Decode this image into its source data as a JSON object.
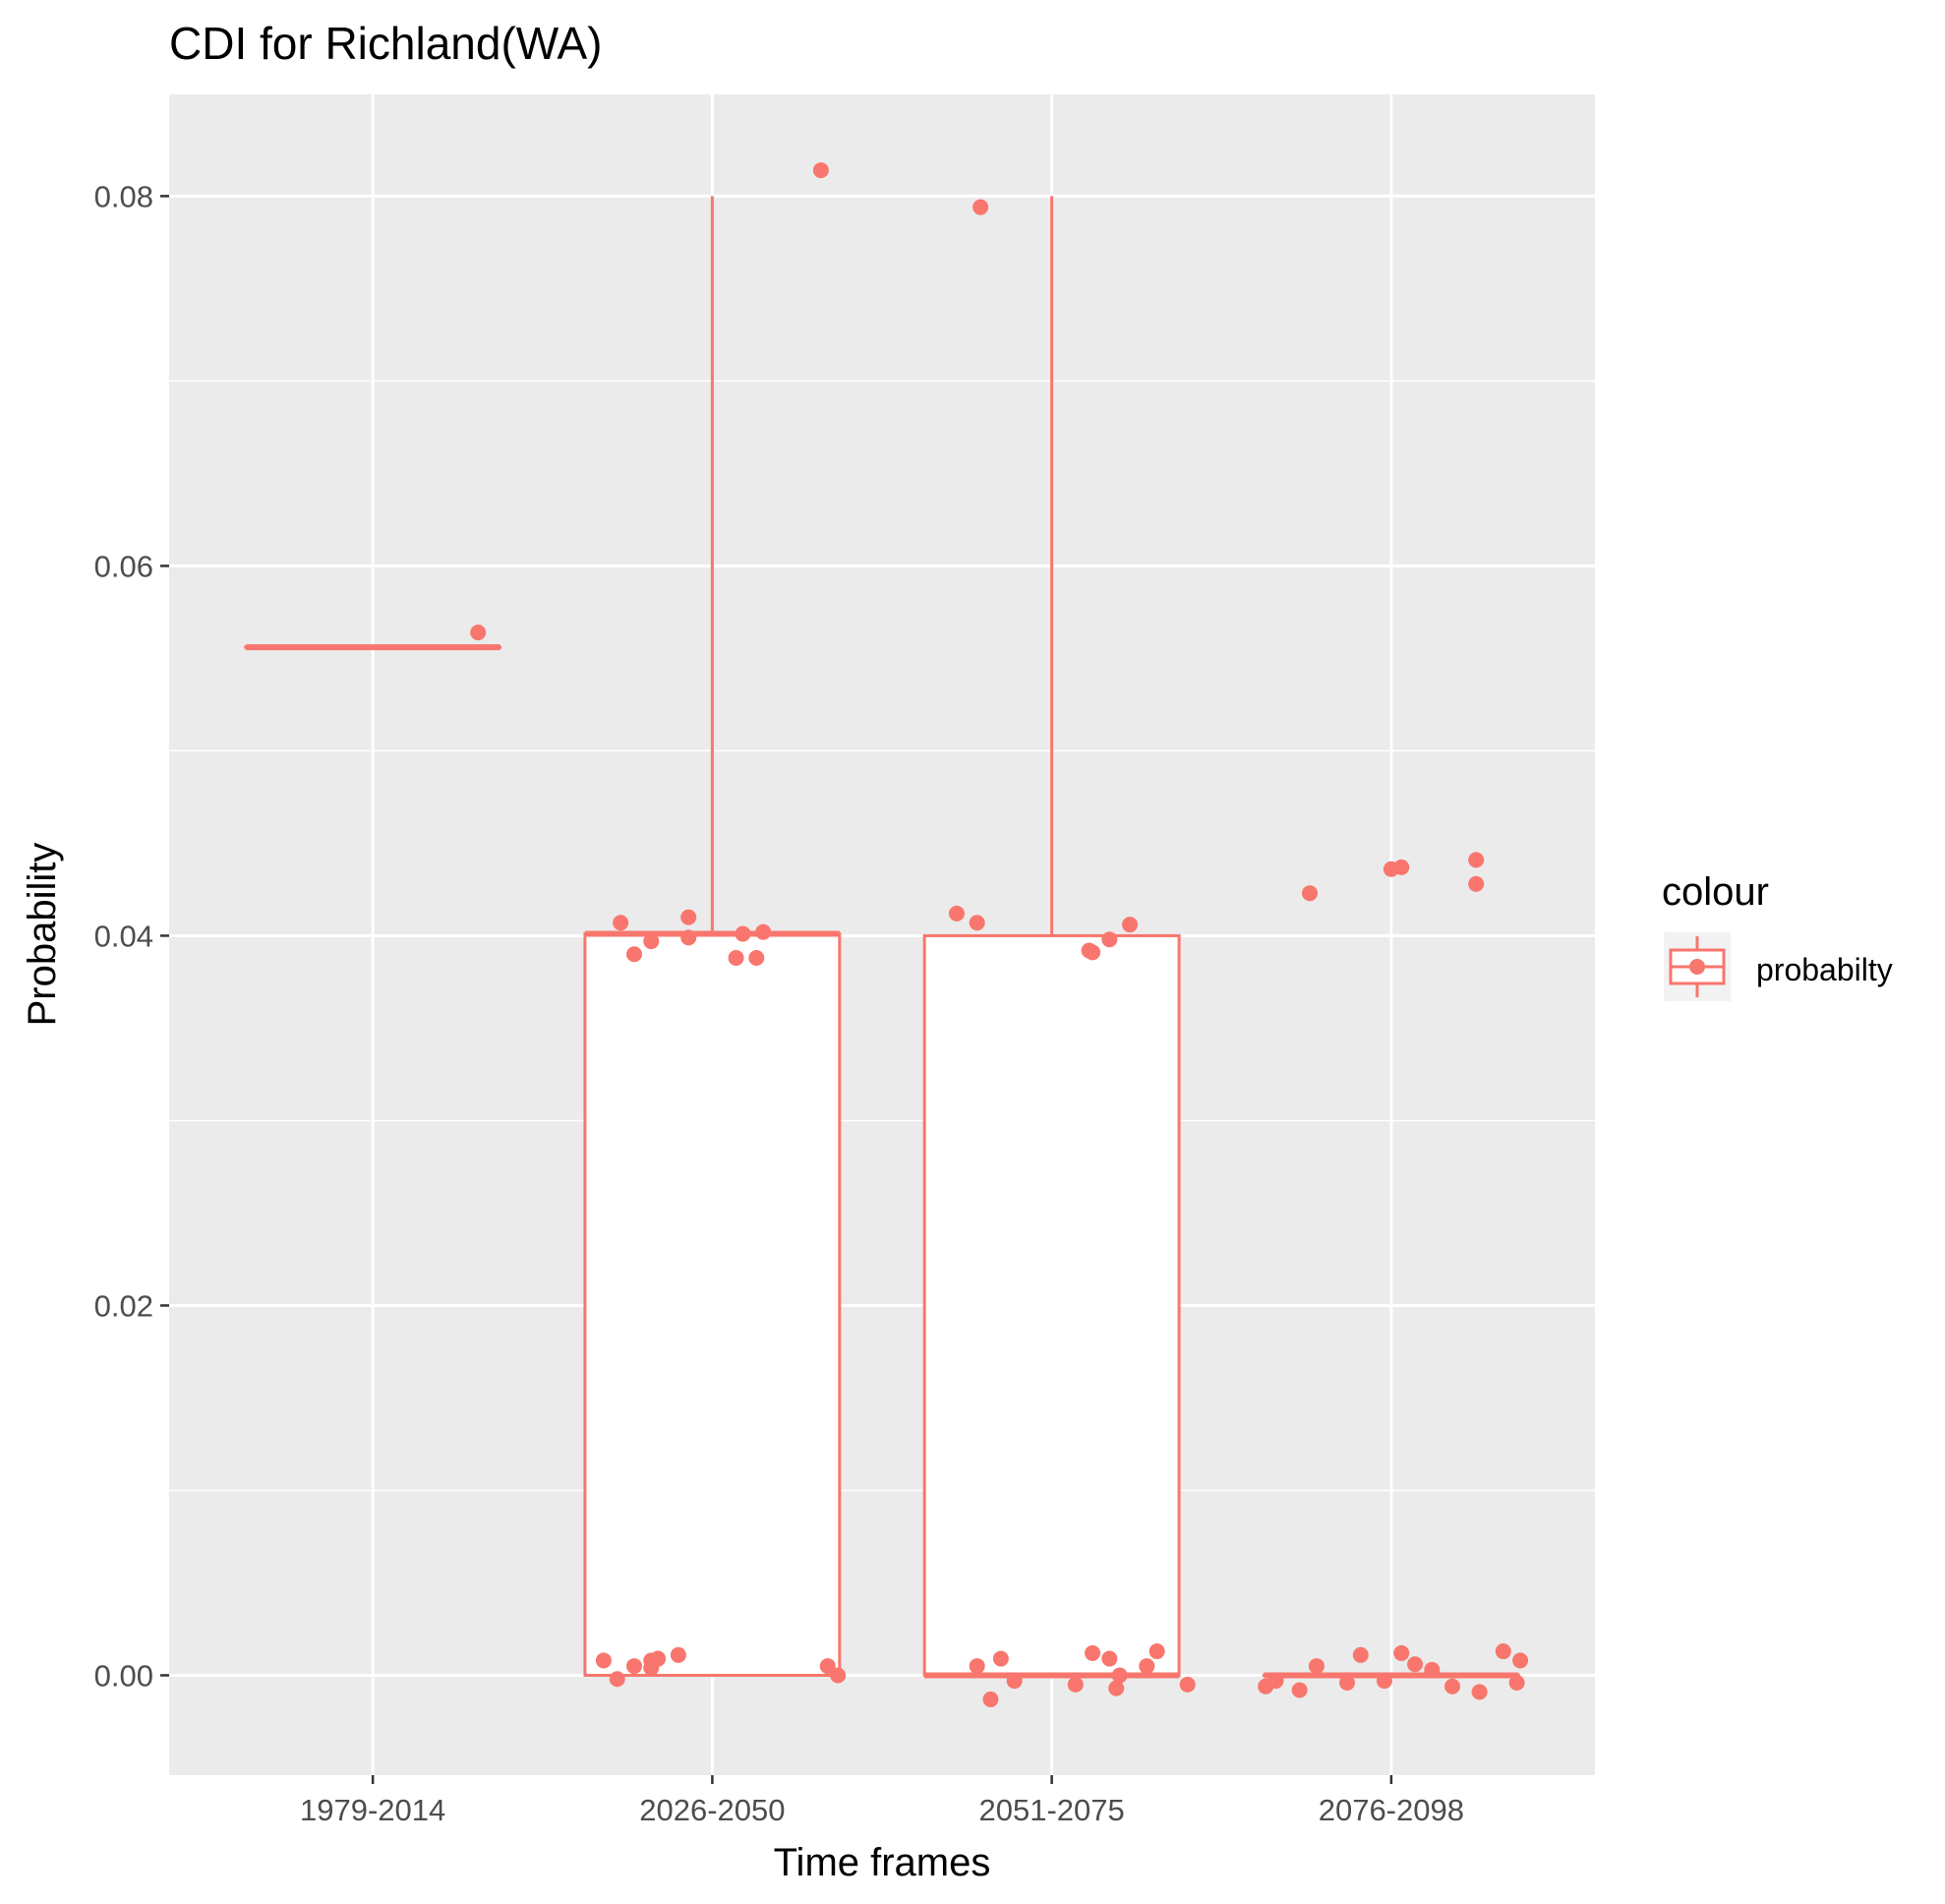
{
  "chart_data": {
    "type": "boxplot",
    "title": "CDI for Richland(WA)",
    "xlabel": "Time frames",
    "ylabel": "Probability",
    "categories": [
      "1979-2014",
      "2026-2050",
      "2051-2075",
      "2076-2098"
    ],
    "y_ticks": [
      "0.00",
      "0.02",
      "0.04",
      "0.06",
      "0.08"
    ],
    "ylim": [
      -0.0054,
      0.0855
    ],
    "grid": true,
    "legend": {
      "title": "colour",
      "position": "right",
      "entries": [
        "probabilty"
      ]
    },
    "series_color": "#F8766D",
    "panel_background": "#EBEBEB",
    "boxes": [
      {
        "category": "1979-2014",
        "q1": 0.0556,
        "median": 0.0556,
        "q3": 0.0556,
        "whisker_low": 0.0556,
        "whisker_high": 0.0556
      },
      {
        "category": "2026-2050",
        "q1": 0.0,
        "median": 0.0401,
        "q3": 0.0401,
        "whisker_low": 0.0,
        "whisker_high": 0.08
      },
      {
        "category": "2051-2075",
        "q1": 0.0,
        "median": 0.0,
        "q3": 0.04,
        "whisker_low": 0.0,
        "whisker_high": 0.08
      },
      {
        "category": "2076-2098",
        "q1": 0.0,
        "median": 0.0,
        "q3": 0.0,
        "whisker_low": 0.0,
        "whisker_high": 0.0
      }
    ],
    "points": [
      {
        "category": "1979-2014",
        "jitter": 0.31,
        "y": 0.0564
      },
      {
        "category": "2026-2050",
        "jitter": 0.32,
        "y": 0.0814
      },
      {
        "category": "2026-2050",
        "jitter": -0.27,
        "y": 0.0407
      },
      {
        "category": "2026-2050",
        "jitter": -0.23,
        "y": 0.039
      },
      {
        "category": "2026-2050",
        "jitter": -0.18,
        "y": 0.0397
      },
      {
        "category": "2026-2050",
        "jitter": -0.07,
        "y": 0.041
      },
      {
        "category": "2026-2050",
        "jitter": -0.07,
        "y": 0.0399
      },
      {
        "category": "2026-2050",
        "jitter": 0.07,
        "y": 0.0388
      },
      {
        "category": "2026-2050",
        "jitter": 0.09,
        "y": 0.0401
      },
      {
        "category": "2026-2050",
        "jitter": 0.13,
        "y": 0.0388
      },
      {
        "category": "2026-2050",
        "jitter": 0.15,
        "y": 0.0402
      },
      {
        "category": "2026-2050",
        "jitter": -0.32,
        "y": 0.0008
      },
      {
        "category": "2026-2050",
        "jitter": -0.28,
        "y": -0.0002
      },
      {
        "category": "2026-2050",
        "jitter": -0.23,
        "y": 0.0005
      },
      {
        "category": "2026-2050",
        "jitter": -0.18,
        "y": 0.0004
      },
      {
        "category": "2026-2050",
        "jitter": -0.18,
        "y": 0.0008
      },
      {
        "category": "2026-2050",
        "jitter": -0.16,
        "y": 0.0009
      },
      {
        "category": "2026-2050",
        "jitter": -0.1,
        "y": 0.0011
      },
      {
        "category": "2026-2050",
        "jitter": 0.34,
        "y": 0.0005
      },
      {
        "category": "2026-2050",
        "jitter": 0.37,
        "y": 0.0
      },
      {
        "category": "2051-2075",
        "jitter": -0.21,
        "y": 0.0794
      },
      {
        "category": "2051-2075",
        "jitter": -0.28,
        "y": 0.0412
      },
      {
        "category": "2051-2075",
        "jitter": -0.22,
        "y": 0.0407
      },
      {
        "category": "2051-2075",
        "jitter": 0.11,
        "y": 0.0392
      },
      {
        "category": "2051-2075",
        "jitter": 0.12,
        "y": 0.0391
      },
      {
        "category": "2051-2075",
        "jitter": 0.17,
        "y": 0.0398
      },
      {
        "category": "2051-2075",
        "jitter": 0.23,
        "y": 0.0406
      },
      {
        "category": "2051-2075",
        "jitter": -0.22,
        "y": 0.0005
      },
      {
        "category": "2051-2075",
        "jitter": -0.18,
        "y": -0.0013
      },
      {
        "category": "2051-2075",
        "jitter": -0.15,
        "y": 0.0009
      },
      {
        "category": "2051-2075",
        "jitter": -0.11,
        "y": -0.0003
      },
      {
        "category": "2051-2075",
        "jitter": 0.07,
        "y": -0.0005
      },
      {
        "category": "2051-2075",
        "jitter": 0.12,
        "y": 0.0012
      },
      {
        "category": "2051-2075",
        "jitter": 0.17,
        "y": 0.0009
      },
      {
        "category": "2051-2075",
        "jitter": 0.19,
        "y": -0.0007
      },
      {
        "category": "2051-2075",
        "jitter": 0.2,
        "y": 0.0
      },
      {
        "category": "2051-2075",
        "jitter": 0.28,
        "y": 0.0005
      },
      {
        "category": "2051-2075",
        "jitter": 0.31,
        "y": 0.0013
      },
      {
        "category": "2051-2075",
        "jitter": 0.4,
        "y": -0.0005
      },
      {
        "category": "2076-2098",
        "jitter": -0.24,
        "y": 0.0423
      },
      {
        "category": "2076-2098",
        "jitter": 0.0,
        "y": 0.0436
      },
      {
        "category": "2076-2098",
        "jitter": 0.03,
        "y": 0.0437
      },
      {
        "category": "2076-2098",
        "jitter": 0.25,
        "y": 0.0441
      },
      {
        "category": "2076-2098",
        "jitter": 0.25,
        "y": 0.0428
      },
      {
        "category": "2076-2098",
        "jitter": -0.37,
        "y": -0.0006
      },
      {
        "category": "2076-2098",
        "jitter": -0.34,
        "y": -0.0003
      },
      {
        "category": "2076-2098",
        "jitter": -0.27,
        "y": -0.0008
      },
      {
        "category": "2076-2098",
        "jitter": -0.22,
        "y": 0.0005
      },
      {
        "category": "2076-2098",
        "jitter": -0.13,
        "y": -0.0004
      },
      {
        "category": "2076-2098",
        "jitter": -0.09,
        "y": 0.0011
      },
      {
        "category": "2076-2098",
        "jitter": -0.02,
        "y": -0.0003
      },
      {
        "category": "2076-2098",
        "jitter": 0.03,
        "y": 0.0012
      },
      {
        "category": "2076-2098",
        "jitter": 0.07,
        "y": 0.0006
      },
      {
        "category": "2076-2098",
        "jitter": 0.12,
        "y": 0.0003
      },
      {
        "category": "2076-2098",
        "jitter": 0.18,
        "y": -0.0006
      },
      {
        "category": "2076-2098",
        "jitter": 0.26,
        "y": -0.0009
      },
      {
        "category": "2076-2098",
        "jitter": 0.33,
        "y": 0.0013
      },
      {
        "category": "2076-2098",
        "jitter": 0.37,
        "y": -0.0004
      },
      {
        "category": "2076-2098",
        "jitter": 0.38,
        "y": 0.0008
      }
    ]
  }
}
